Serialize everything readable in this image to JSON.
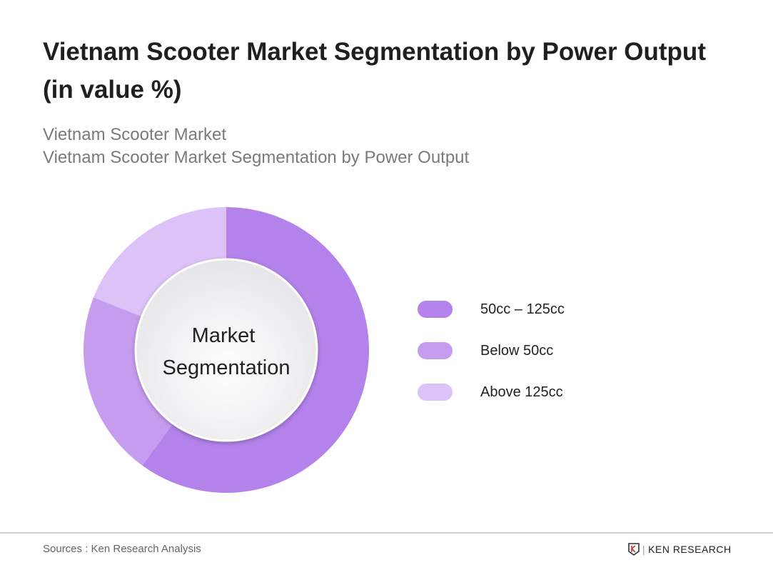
{
  "title": "Vietnam Scooter Market Segmentation by Power Output (in value %)",
  "subtitle_1": "Vietnam Scooter Market",
  "subtitle_2": "Vietnam Scooter Market Segmentation by Power Output",
  "chart_data": {
    "type": "pie",
    "variant": "donut",
    "center_label": [
      "Market",
      "Segmentation"
    ],
    "legend_placement": "right",
    "categories": [
      "50cc – 125cc",
      "Below 50cc",
      "Above 125cc"
    ],
    "values": [
      60,
      21,
      19
    ],
    "colors": [
      "#b382ea",
      "#c69cee",
      "#dcc2f7"
    ]
  },
  "footer": {
    "source": "Sources : Ken Research Analysis",
    "logo_text": "KEN RESEARCH"
  }
}
